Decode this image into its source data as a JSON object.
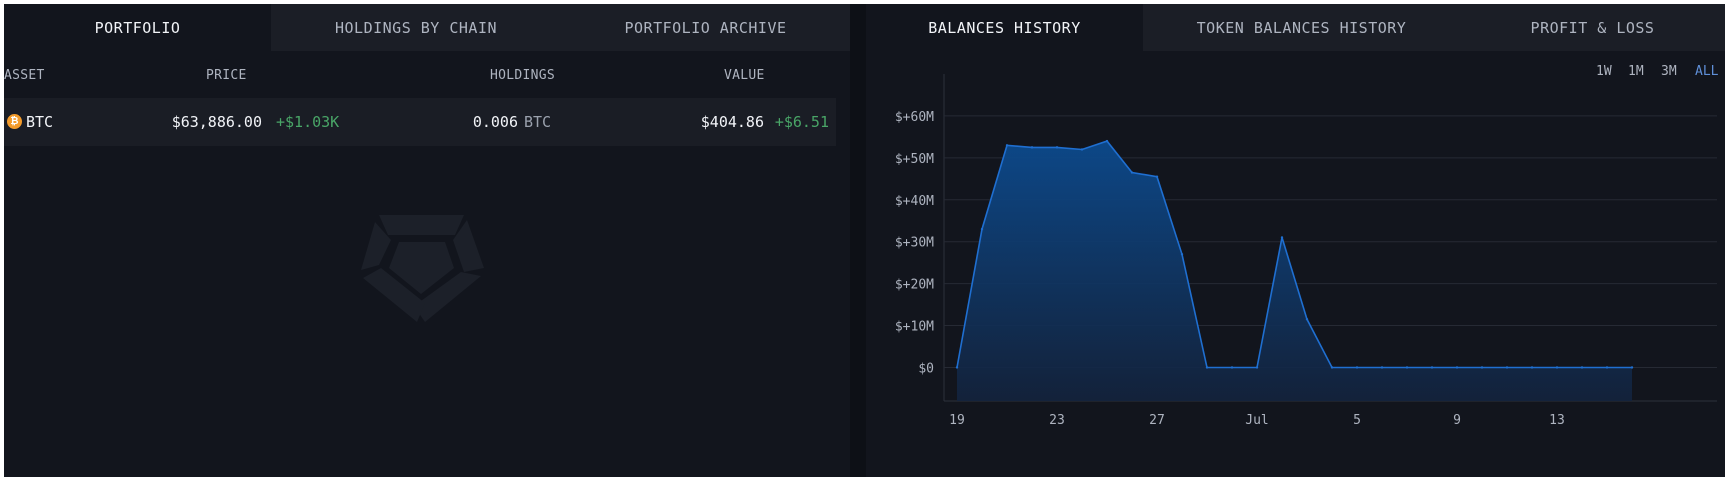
{
  "left_panel": {
    "tabs": [
      {
        "label": "PORTFOLIO",
        "active": true
      },
      {
        "label": "HOLDINGS BY CHAIN",
        "active": false
      },
      {
        "label": "PORTFOLIO ARCHIVE",
        "active": false
      }
    ],
    "columns": {
      "asset": "ASSET",
      "price": "PRICE",
      "holdings": "HOLDINGS",
      "value": "VALUE"
    },
    "rows": [
      {
        "icon": "bitcoin-icon",
        "icon_glyph": "₿",
        "asset": "BTC",
        "price": "$63,886.00",
        "price_change": "+$1.03K",
        "holdings_amount": "0.006",
        "holdings_unit": "BTC",
        "value": "$404.86",
        "value_change": "+$6.51"
      }
    ],
    "watermark_icon": "arkham-logo-icon"
  },
  "right_panel": {
    "tabs": [
      {
        "label": "BALANCES HISTORY",
        "active": true
      },
      {
        "label": "TOKEN BALANCES HISTORY",
        "active": false
      },
      {
        "label": "PROFIT & LOSS",
        "active": false
      }
    ],
    "ranges": [
      {
        "label": "1W",
        "active": false
      },
      {
        "label": "1M",
        "active": false
      },
      {
        "label": "3M",
        "active": false
      },
      {
        "label": "ALL",
        "active": true
      }
    ]
  },
  "colors": {
    "accent": "#5f8fd8",
    "positive": "#49a567",
    "series_line": "#1f6fd1",
    "btc_orange": "#f39b2b"
  },
  "chart_data": {
    "type": "area",
    "title": "",
    "xlabel": "",
    "ylabel": "",
    "x_ticks": [
      "19",
      "23",
      "27",
      "Jul",
      "5",
      "9",
      "13"
    ],
    "y_ticks": [
      "$0",
      "$+10M",
      "$+20M",
      "$+30M",
      "$+40M",
      "$+50M",
      "$+60M"
    ],
    "ylim": [
      -8,
      70
    ],
    "grid": true,
    "x": [
      "Jun 19",
      "Jun 20",
      "Jun 21",
      "Jun 22",
      "Jun 23",
      "Jun 24",
      "Jun 25",
      "Jun 26",
      "Jun 27",
      "Jun 28",
      "Jun 29",
      "Jun 30",
      "Jul 1",
      "Jul 2",
      "Jul 3",
      "Jul 4",
      "Jul 5",
      "Jul 6",
      "Jul 7",
      "Jul 8",
      "Jul 9",
      "Jul 10",
      "Jul 11",
      "Jul 12",
      "Jul 13",
      "Jul 14",
      "Jul 15",
      "Jul 16"
    ],
    "series": [
      {
        "values": [
          0,
          33,
          53,
          52.5,
          52.5,
          52,
          54,
          46.5,
          45.5,
          27,
          0,
          0,
          0,
          31,
          11.5,
          0,
          0,
          0,
          0,
          0,
          0,
          0,
          0,
          0,
          0,
          0,
          0,
          0
        ]
      }
    ],
    "unit": "million USD"
  }
}
